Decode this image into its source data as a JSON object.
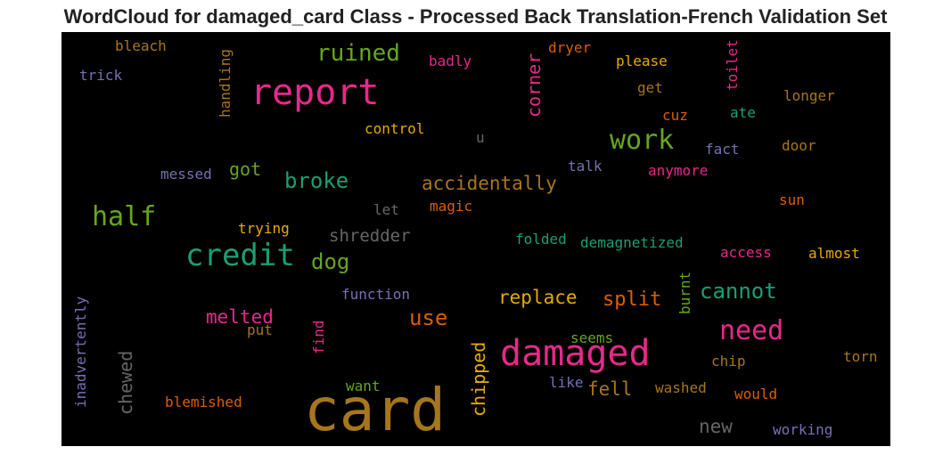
{
  "chart_data": {
    "type": "wordcloud",
    "title": "WordCloud for damaged_card Class - Processed Back Translation-French Validation Set",
    "words": [
      {
        "text": "card",
        "color": "#a6761d"
      },
      {
        "text": "damaged",
        "color": "#e7298a"
      },
      {
        "text": "report",
        "color": "#e7298a"
      },
      {
        "text": "credit",
        "color": "#1b9e77"
      },
      {
        "text": "half",
        "color": "#66a61e"
      },
      {
        "text": "need",
        "color": "#e7298a"
      },
      {
        "text": "work",
        "color": "#66a61e"
      },
      {
        "text": "ruined",
        "color": "#66a61e"
      },
      {
        "text": "broke",
        "color": "#1b9e77"
      },
      {
        "text": "cannot",
        "color": "#1b9e77"
      },
      {
        "text": "dog",
        "color": "#66a61e"
      },
      {
        "text": "use",
        "color": "#d95f02"
      },
      {
        "text": "accidentally",
        "color": "#a6761d"
      },
      {
        "text": "split",
        "color": "#d95f02"
      },
      {
        "text": "replace",
        "color": "#e6ab02"
      },
      {
        "text": "shredder",
        "color": "#666666"
      },
      {
        "text": "melted",
        "color": "#e7298a"
      },
      {
        "text": "fell",
        "color": "#a6761d"
      },
      {
        "text": "new",
        "color": "#666666"
      },
      {
        "text": "chewed",
        "color": "#666666"
      },
      {
        "text": "corner",
        "color": "#e7298a"
      },
      {
        "text": "chipped",
        "color": "#e6ab02"
      },
      {
        "text": "got",
        "color": "#66a61e"
      },
      {
        "text": "bleach",
        "color": "#a6761d"
      },
      {
        "text": "trick",
        "color": "#7570b3"
      },
      {
        "text": "handling",
        "color": "#a6761d"
      },
      {
        "text": "badly",
        "color": "#e7298a"
      },
      {
        "text": "dryer",
        "color": "#d95f02"
      },
      {
        "text": "please",
        "color": "#e6ab02"
      },
      {
        "text": "toilet",
        "color": "#e7298a"
      },
      {
        "text": "get",
        "color": "#a6761d"
      },
      {
        "text": "longer",
        "color": "#a6761d"
      },
      {
        "text": "cuz",
        "color": "#d95f02"
      },
      {
        "text": "ate",
        "color": "#1b9e77"
      },
      {
        "text": "control",
        "color": "#e6ab02"
      },
      {
        "text": "u",
        "color": "#666666"
      },
      {
        "text": "fact",
        "color": "#7570b3"
      },
      {
        "text": "door",
        "color": "#a6761d"
      },
      {
        "text": "talk",
        "color": "#7570b3"
      },
      {
        "text": "anymore",
        "color": "#e7298a"
      },
      {
        "text": "messed",
        "color": "#7570b3"
      },
      {
        "text": "sun",
        "color": "#d95f02"
      },
      {
        "text": "let",
        "color": "#666666"
      },
      {
        "text": "magic",
        "color": "#d95f02"
      },
      {
        "text": "trying",
        "color": "#e6ab02"
      },
      {
        "text": "folded",
        "color": "#1b9e77"
      },
      {
        "text": "demagnetized",
        "color": "#1b9e77"
      },
      {
        "text": "access",
        "color": "#e7298a"
      },
      {
        "text": "almost",
        "color": "#e6ab02"
      },
      {
        "text": "burnt",
        "color": "#66a61e"
      },
      {
        "text": "function",
        "color": "#7570b3"
      },
      {
        "text": "inadvertently",
        "color": "#7570b3"
      },
      {
        "text": "put",
        "color": "#a6761d"
      },
      {
        "text": "find",
        "color": "#e7298a"
      },
      {
        "text": "seems",
        "color": "#66a61e"
      },
      {
        "text": "chip",
        "color": "#a6761d"
      },
      {
        "text": "torn",
        "color": "#a6761d"
      },
      {
        "text": "like",
        "color": "#7570b3"
      },
      {
        "text": "washed",
        "color": "#a6761d"
      },
      {
        "text": "would",
        "color": "#d95f02"
      },
      {
        "text": "want",
        "color": "#66a61e"
      },
      {
        "text": "blemished",
        "color": "#d95f02"
      },
      {
        "text": "working",
        "color": "#7570b3"
      }
    ]
  }
}
